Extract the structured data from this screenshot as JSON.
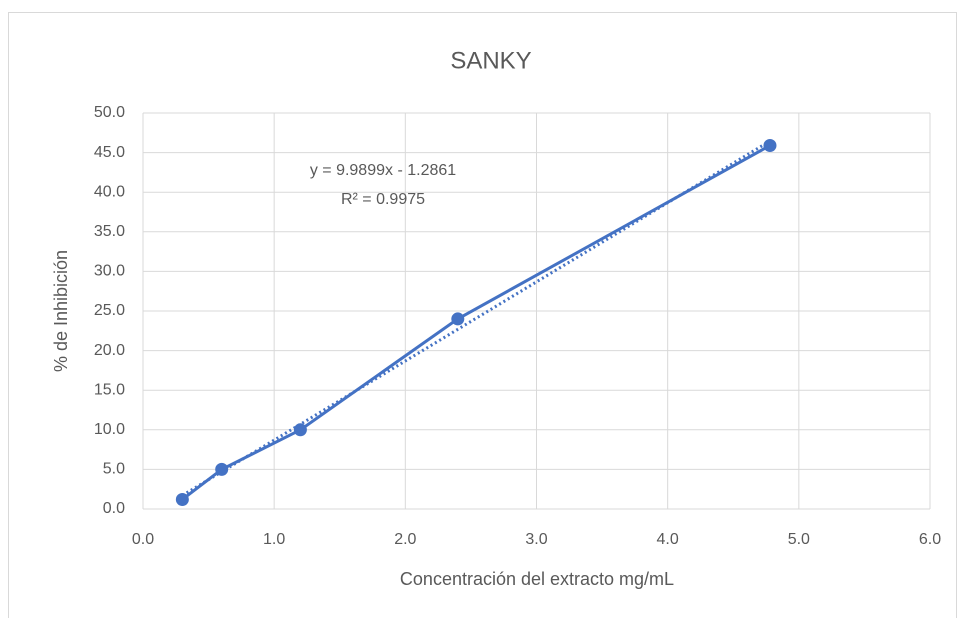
{
  "chart_data": {
    "type": "scatter",
    "title": "SANKY",
    "x_label": "Concentración del extracto mg/mL",
    "y_label": "% de Inhibición",
    "series": [
      {
        "name": "SANKY",
        "color": "#4472c4",
        "x": [
          0.3,
          0.6,
          1.2,
          2.4,
          4.78
        ],
        "values": [
          1.2,
          5.0,
          10.0,
          24.0,
          45.9
        ]
      }
    ],
    "trendline": {
      "color": "#4472c4",
      "x": [
        0.3,
        4.78
      ],
      "values": [
        1.71,
        46.46
      ],
      "annotations": [
        "y = 9.9899x - 1.2861",
        "R² = 0.9975"
      ]
    },
    "xlim": [
      0,
      6
    ],
    "ylim": [
      0,
      50
    ],
    "xticks": [
      {
        "value": 0,
        "label": "0.0"
      },
      {
        "value": 1,
        "label": "1.0"
      },
      {
        "value": 2,
        "label": "2.0"
      },
      {
        "value": 3,
        "label": "3.0"
      },
      {
        "value": 4,
        "label": "4.0"
      },
      {
        "value": 5,
        "label": "5.0"
      },
      {
        "value": 6,
        "label": "6.0"
      }
    ],
    "yticks": [
      {
        "value": 0,
        "label": "0.0"
      },
      {
        "value": 5,
        "label": "5.0"
      },
      {
        "value": 10,
        "label": "10.0"
      },
      {
        "value": 15,
        "label": "15.0"
      },
      {
        "value": 20,
        "label": "20.0"
      },
      {
        "value": 25,
        "label": "25.0"
      },
      {
        "value": 30,
        "label": "30.0"
      },
      {
        "value": 35,
        "label": "35.0"
      },
      {
        "value": 40,
        "label": "40.0"
      },
      {
        "value": 45,
        "label": "45.0"
      },
      {
        "value": 50,
        "label": "50.0"
      }
    ],
    "grid": true
  }
}
